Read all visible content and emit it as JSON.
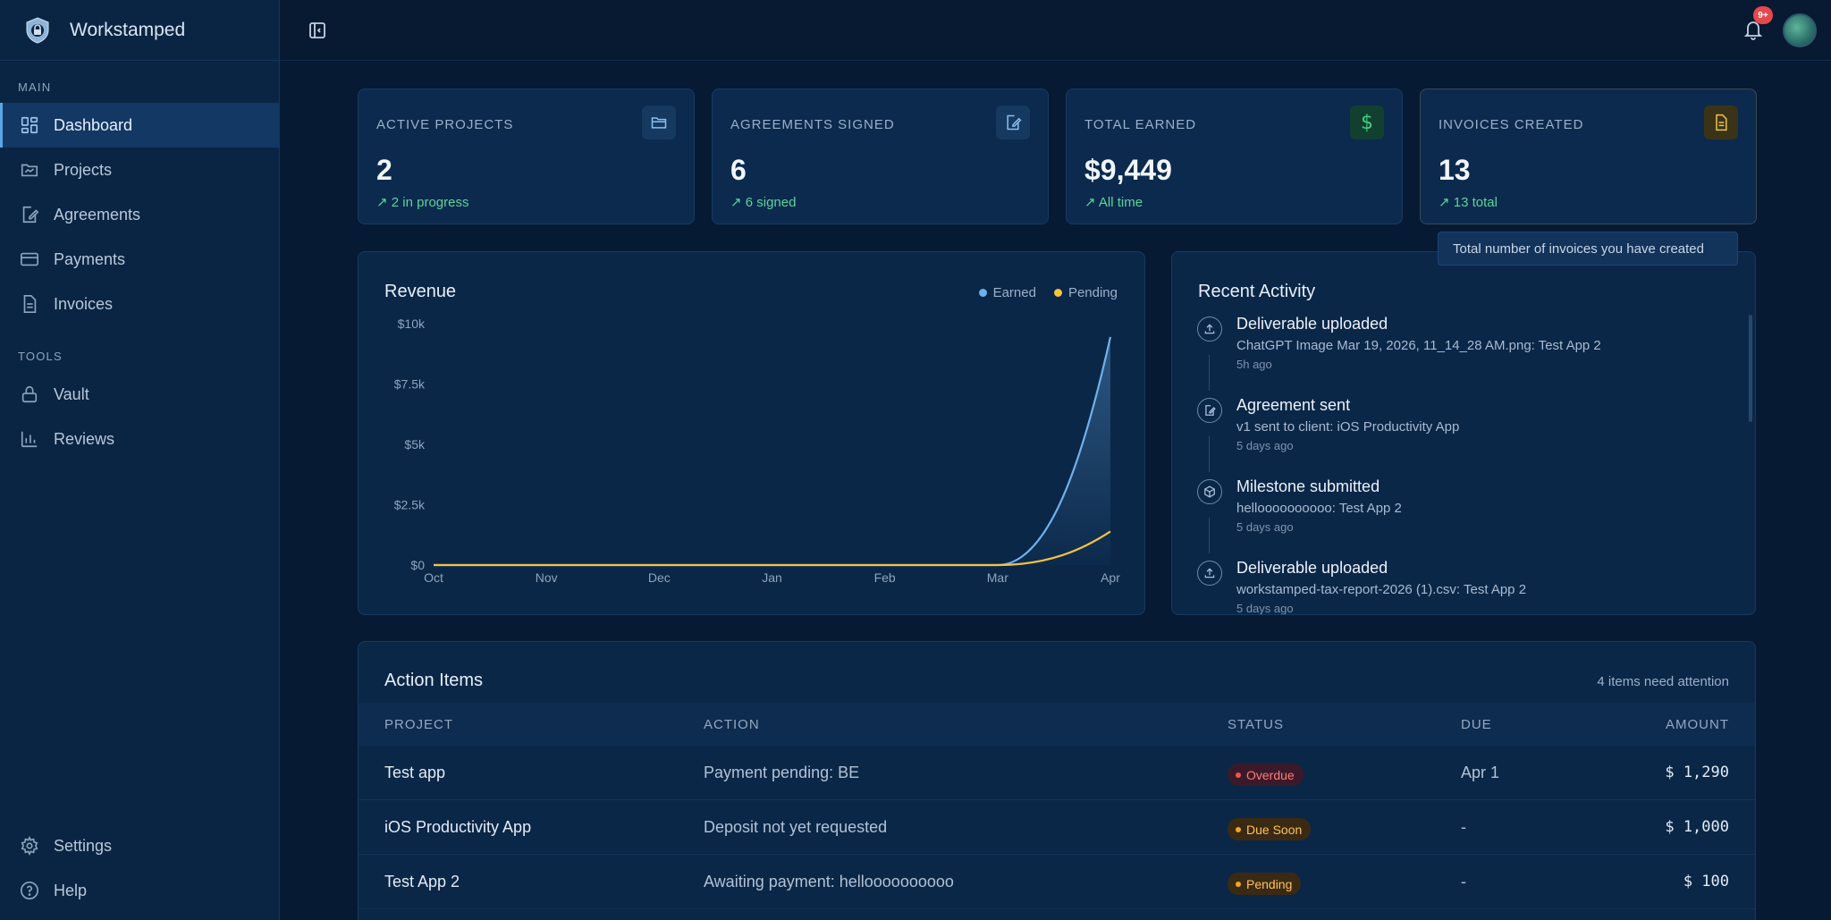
{
  "brand": {
    "name": "Workstamped"
  },
  "sidebar": {
    "main_label": "MAIN",
    "main_items": [
      {
        "label": "Dashboard",
        "icon": "dashboard-icon",
        "active": true
      },
      {
        "label": "Projects",
        "icon": "projects-icon"
      },
      {
        "label": "Agreements",
        "icon": "agreements-icon"
      },
      {
        "label": "Payments",
        "icon": "payments-icon"
      },
      {
        "label": "Invoices",
        "icon": "invoices-icon"
      }
    ],
    "tools_label": "TOOLS",
    "tools_items": [
      {
        "label": "Vault",
        "icon": "lock-icon"
      },
      {
        "label": "Reviews",
        "icon": "bar-chart-icon"
      }
    ],
    "bottom_items": [
      {
        "label": "Settings",
        "icon": "gear-icon"
      },
      {
        "label": "Help",
        "icon": "help-icon"
      }
    ]
  },
  "topbar": {
    "notification_count": "9+"
  },
  "stats": [
    {
      "label": "ACTIVE PROJECTS",
      "value": "2",
      "sub": "2 in progress",
      "icon": "folder-icon",
      "accent": "#5aa7e8"
    },
    {
      "label": "AGREEMENTS SIGNED",
      "value": "6",
      "sub": "6 signed",
      "icon": "signed-doc-icon",
      "accent": "#5aa7e8"
    },
    {
      "label": "TOTAL EARNED",
      "value": "$9,449",
      "sub": "All time",
      "icon": "dollar-icon",
      "accent": "#3fcf7f"
    },
    {
      "label": "INVOICES CREATED",
      "value": "13",
      "sub": "13 total",
      "icon": "invoice-icon",
      "accent": "#f2c14e"
    }
  ],
  "tooltip": {
    "text": "Total number of invoices you have created"
  },
  "revenue": {
    "title": "Revenue",
    "legend": [
      {
        "name": "Earned",
        "color": "#6fb1ec"
      },
      {
        "name": "Pending",
        "color": "#f5c242"
      }
    ]
  },
  "chart_data": {
    "type": "line",
    "title": "Revenue",
    "categories": [
      "Oct",
      "Nov",
      "Dec",
      "Jan",
      "Feb",
      "Mar",
      "Apr"
    ],
    "series": [
      {
        "name": "Earned",
        "color": "#6fb1ec",
        "values": [
          0,
          0,
          0,
          0,
          0,
          0,
          9449
        ]
      },
      {
        "name": "Pending",
        "color": "#f5c242",
        "values": [
          0,
          0,
          0,
          0,
          0,
          0,
          1390
        ]
      }
    ],
    "ylim": [
      0,
      10000
    ],
    "yticks": [
      "$0",
      "$2.5k",
      "$5k",
      "$7.5k",
      "$10k"
    ],
    "legend_position": "top-right",
    "grid": false
  },
  "activity": {
    "title": "Recent Activity",
    "items": [
      {
        "icon": "upload-icon",
        "title": "Deliverable uploaded",
        "desc": "ChatGPT Image Mar 19, 2026, 11_14_28 AM.png: Test App 2",
        "time": "5h ago"
      },
      {
        "icon": "agreement-icon",
        "title": "Agreement sent",
        "desc": "v1 sent to client: iOS Productivity App",
        "time": "5 days ago"
      },
      {
        "icon": "box-icon",
        "title": "Milestone submitted",
        "desc": "helloooooooooo: Test App 2",
        "time": "5 days ago"
      },
      {
        "icon": "upload-icon",
        "title": "Deliverable uploaded",
        "desc": "workstamped-tax-report-2026 (1).csv: Test App 2",
        "time": "5 days ago"
      }
    ]
  },
  "action_items": {
    "title": "Action Items",
    "summary": "4 items need attention",
    "columns": [
      "PROJECT",
      "ACTION",
      "STATUS",
      "DUE",
      "AMOUNT"
    ],
    "rows": [
      {
        "project": "Test app",
        "action": "Payment pending: BE",
        "status": "Overdue",
        "status_color": "#ef5350",
        "status_bg": "#3a1a2a",
        "status_text": "#ff7a7a",
        "due": "Apr 1",
        "amount": "$ 1,290"
      },
      {
        "project": "iOS Productivity App",
        "action": "Deposit not yet requested",
        "status": "Due Soon",
        "status_color": "#f5a524",
        "status_bg": "#3a2a14",
        "status_text": "#ffc35a",
        "due": "-",
        "amount": "$ 1,000"
      },
      {
        "project": "Test App 2",
        "action": "Awaiting payment: helloooooooooo",
        "status": "Pending",
        "status_color": "#f5a524",
        "status_bg": "#3a2a14",
        "status_text": "#ffc35a",
        "due": "-",
        "amount": "$ 100"
      }
    ]
  }
}
